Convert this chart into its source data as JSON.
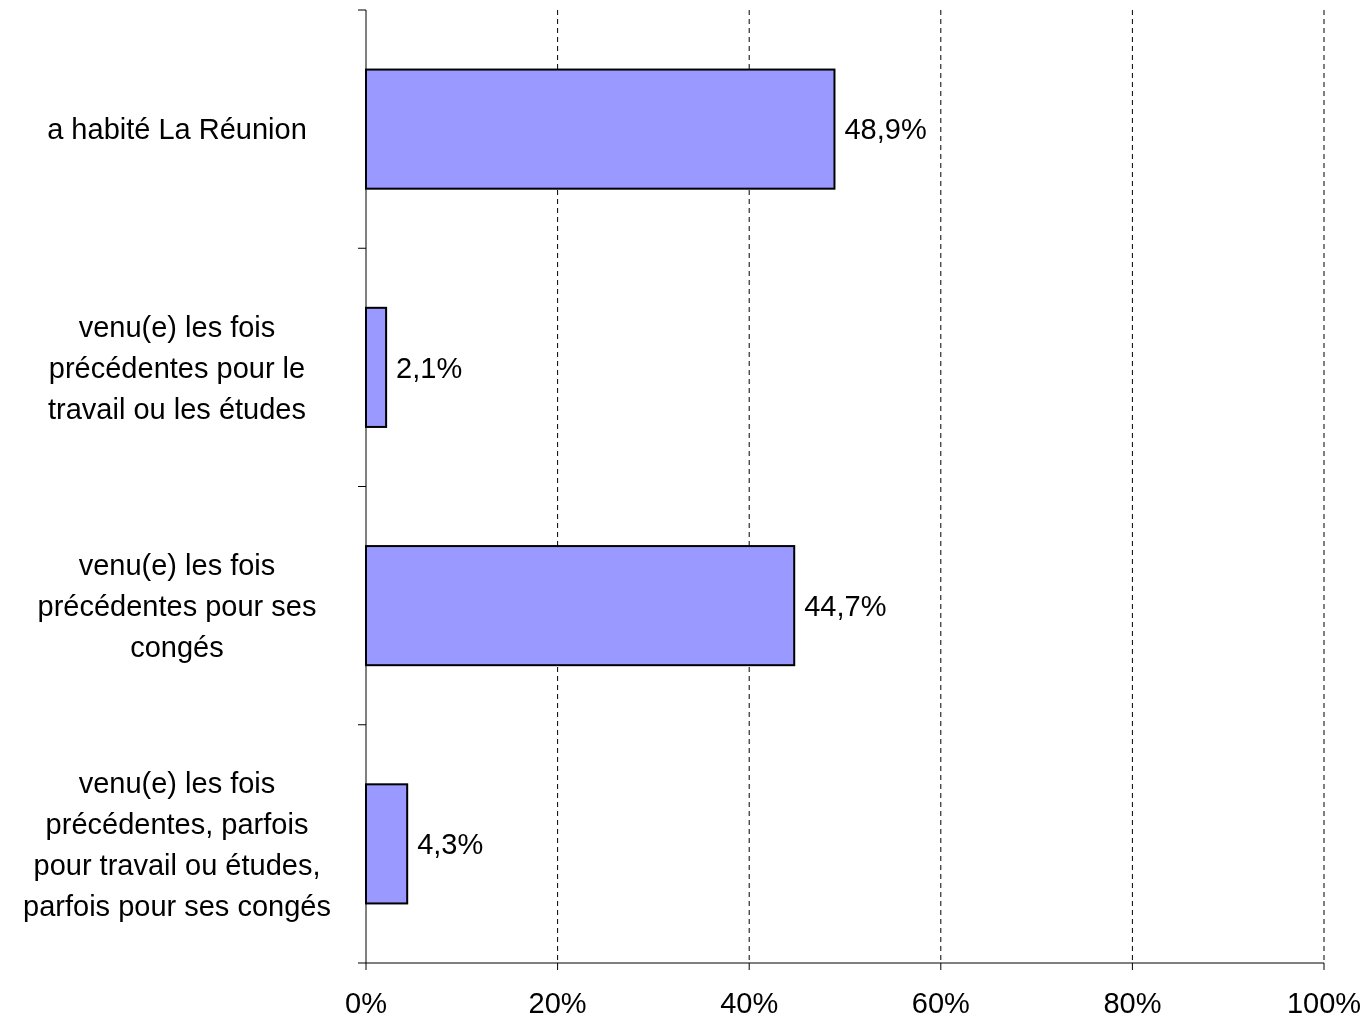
{
  "chart_data": {
    "type": "bar",
    "orientation": "horizontal",
    "categories": [
      "a habité La Réunion",
      "venu(e) les fois précédentes pour le travail ou les études",
      "venu(e) les fois précédentes pour ses congés",
      "venu(e) les fois précédentes, parfois pour travail ou études, parfois pour ses congés"
    ],
    "values": [
      48.9,
      2.1,
      44.7,
      4.3
    ],
    "value_labels": [
      "48,9%",
      "2,1%",
      "44,7%",
      "4,3%"
    ],
    "color": "#9999ff",
    "xlim": [
      0,
      100
    ],
    "xticks": [
      {
        "value": 0,
        "label": "0%"
      },
      {
        "value": 20,
        "label": "20%"
      },
      {
        "value": 40,
        "label": "40%"
      },
      {
        "value": 60,
        "label": "60%"
      },
      {
        "value": 80,
        "label": "80%"
      },
      {
        "value": 100,
        "label": "100%"
      }
    ],
    "grid": "x"
  }
}
